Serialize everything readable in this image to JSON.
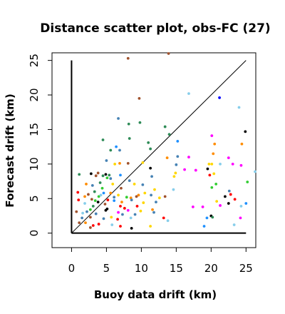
{
  "chart_data": {
    "type": "scatter",
    "title": "Distance scatter plot, obs-FC (27)",
    "xlabel": "Buoy data drift (km)",
    "ylabel": "Forecast drift (km)",
    "xlim": [
      -2.8,
      26.4
    ],
    "ylim": [
      -2.1,
      26.1
    ],
    "x_ticks": [
      0,
      5,
      10,
      15,
      20,
      25
    ],
    "y_ticks": [
      0,
      5,
      10,
      15,
      20,
      25
    ],
    "grid": false,
    "legend": "none",
    "reference": {
      "diagonal": [
        [
          0,
          0
        ],
        [
          25,
          25
        ]
      ],
      "vertical_axis_line": [
        [
          0,
          0
        ],
        [
          0,
          25
        ]
      ],
      "horizontal_axis_line": [
        [
          0,
          0
        ],
        [
          25,
          0
        ]
      ]
    },
    "points": [
      {
        "x": 8.1,
        "y": 25.3,
        "color": "#a0522d"
      },
      {
        "x": 13.9,
        "y": 26.0,
        "color": "#a0522d"
      },
      {
        "x": 16.8,
        "y": 20.2,
        "color": "#87ceeb"
      },
      {
        "x": 9.7,
        "y": 19.5,
        "color": "#a0522d"
      },
      {
        "x": 21.2,
        "y": 19.6,
        "color": "#0000ff"
      },
      {
        "x": 24.0,
        "y": 18.2,
        "color": "#87ceeb"
      },
      {
        "x": 6.7,
        "y": 16.6,
        "color": "#4682b4"
      },
      {
        "x": 9.8,
        "y": 16.0,
        "color": "#2e8b57"
      },
      {
        "x": 8.2,
        "y": 15.8,
        "color": "#2e8b57"
      },
      {
        "x": 13.4,
        "y": 15.4,
        "color": "#2e8b57"
      },
      {
        "x": 14.0,
        "y": 14.3,
        "color": "#2e8b57"
      },
      {
        "x": 20.1,
        "y": 14.1,
        "color": "#ff00ff"
      },
      {
        "x": 24.9,
        "y": 14.7,
        "color": "#000000"
      },
      {
        "x": 8.3,
        "y": 13.7,
        "color": "#2e8b57"
      },
      {
        "x": 4.5,
        "y": 13.5,
        "color": "#2e8b57"
      },
      {
        "x": 11.0,
        "y": 13.1,
        "color": "#2e8b57"
      },
      {
        "x": 15.2,
        "y": 13.3,
        "color": "#1e90ff"
      },
      {
        "x": 20.5,
        "y": 12.9,
        "color": "#ff8c00"
      },
      {
        "x": 24.4,
        "y": 12.9,
        "color": "#ff8c00"
      },
      {
        "x": 6.4,
        "y": 12.5,
        "color": "#1e90ff"
      },
      {
        "x": 5.6,
        "y": 12.0,
        "color": "#2e8b57"
      },
      {
        "x": 6.9,
        "y": 12.0,
        "color": "#4682b4"
      },
      {
        "x": 11.3,
        "y": 12.2,
        "color": "#2e8b57"
      },
      {
        "x": 20.3,
        "y": 11.5,
        "color": "#ff8c00"
      },
      {
        "x": 15.2,
        "y": 11.1,
        "color": "#4682b4"
      },
      {
        "x": 16.8,
        "y": 11.0,
        "color": "#ff00ff"
      },
      {
        "x": 22.5,
        "y": 10.9,
        "color": "#ff00ff"
      },
      {
        "x": 13.7,
        "y": 10.9,
        "color": "#ff8c00"
      },
      {
        "x": 5.0,
        "y": 10.5,
        "color": "#4682b4"
      },
      {
        "x": 6.2,
        "y": 10.0,
        "color": "#ffd700"
      },
      {
        "x": 6.9,
        "y": 10.1,
        "color": "#ff8c00"
      },
      {
        "x": 8.1,
        "y": 10.1,
        "color": "#a0522d"
      },
      {
        "x": 10.2,
        "y": 10.2,
        "color": "#ffd700"
      },
      {
        "x": 15.0,
        "y": 9.9,
        "color": "#4682b4"
      },
      {
        "x": 19.7,
        "y": 10.0,
        "color": "#ffd700"
      },
      {
        "x": 20.1,
        "y": 10.0,
        "color": "#ffd700"
      },
      {
        "x": 21.3,
        "y": 10.0,
        "color": "#87ceeb"
      },
      {
        "x": 23.1,
        "y": 10.0,
        "color": "#ff00ff"
      },
      {
        "x": 24.3,
        "y": 9.8,
        "color": "#ff00ff"
      },
      {
        "x": 11.3,
        "y": 9.4,
        "color": "#000000"
      },
      {
        "x": 16.2,
        "y": 9.2,
        "color": "#ff00ff"
      },
      {
        "x": 17.8,
        "y": 9.1,
        "color": "#ff00ff"
      },
      {
        "x": 19.5,
        "y": 9.3,
        "color": "#000000"
      },
      {
        "x": 26.3,
        "y": 8.9,
        "color": "#87ceeb"
      },
      {
        "x": 2.8,
        "y": 8.6,
        "color": "#000000"
      },
      {
        "x": 3.8,
        "y": 8.7,
        "color": "#a0522d"
      },
      {
        "x": 4.9,
        "y": 8.5,
        "color": "#000000"
      },
      {
        "x": 5.4,
        "y": 8.4,
        "color": "#2e8b57"
      },
      {
        "x": 7.0,
        "y": 8.4,
        "color": "#1e90ff"
      },
      {
        "x": 11.5,
        "y": 8.2,
        "color": "#4682b4"
      },
      {
        "x": 14.9,
        "y": 8.7,
        "color": "#ffd700"
      },
      {
        "x": 1.1,
        "y": 8.5,
        "color": "#2e8b57"
      },
      {
        "x": 3.5,
        "y": 8.3,
        "color": "#a0522d"
      },
      {
        "x": 4.5,
        "y": 8.3,
        "color": "#2e8b57"
      },
      {
        "x": 5.1,
        "y": 8.0,
        "color": "#32cd32"
      },
      {
        "x": 14.7,
        "y": 8.2,
        "color": "#ffd700"
      },
      {
        "x": 19.8,
        "y": 8.4,
        "color": "#ff0000"
      },
      {
        "x": 20.4,
        "y": 8.6,
        "color": "#ffd700"
      },
      {
        "x": 25.2,
        "y": 7.4,
        "color": "#32cd32"
      },
      {
        "x": 5.6,
        "y": 7.9,
        "color": "#4682b4"
      },
      {
        "x": 8.3,
        "y": 7.6,
        "color": "#4682b4"
      },
      {
        "x": 4.1,
        "y": 7.3,
        "color": "#2e8b57"
      },
      {
        "x": 5.9,
        "y": 7.1,
        "color": "#ffd700"
      },
      {
        "x": 2.1,
        "y": 7.1,
        "color": "#ff8c00"
      },
      {
        "x": 9.0,
        "y": 7.1,
        "color": "#ffd700"
      },
      {
        "x": 10.2,
        "y": 7.0,
        "color": "#4682b4"
      },
      {
        "x": 20.7,
        "y": 7.1,
        "color": "#32cd32"
      },
      {
        "x": 3.0,
        "y": 6.9,
        "color": "#4682b4"
      },
      {
        "x": 4.4,
        "y": 6.5,
        "color": "#32cd32"
      },
      {
        "x": 7.1,
        "y": 6.5,
        "color": "#a0522d"
      },
      {
        "x": 11.9,
        "y": 6.3,
        "color": "#ffd700"
      },
      {
        "x": 14.6,
        "y": 6.3,
        "color": "#87ceeb"
      },
      {
        "x": 20.1,
        "y": 6.6,
        "color": "#32cd32"
      },
      {
        "x": 22.6,
        "y": 6.1,
        "color": "#4682b4"
      },
      {
        "x": 22.8,
        "y": 5.6,
        "color": "#ff0000"
      },
      {
        "x": 0.9,
        "y": 5.9,
        "color": "#ff0000"
      },
      {
        "x": 3.3,
        "y": 6.0,
        "color": "#2e8b57"
      },
      {
        "x": 4.6,
        "y": 5.8,
        "color": "#1e90ff"
      },
      {
        "x": 5.6,
        "y": 5.8,
        "color": "#ff8c00"
      },
      {
        "x": 9.6,
        "y": 5.5,
        "color": "#ff8c00"
      },
      {
        "x": 10.5,
        "y": 5.8,
        "color": "#ffd700"
      },
      {
        "x": 11.4,
        "y": 5.5,
        "color": "#4682b4"
      },
      {
        "x": 13.4,
        "y": 5.3,
        "color": "#a0522d"
      },
      {
        "x": 1.9,
        "y": 5.3,
        "color": "#ff8c00"
      },
      {
        "x": 2.4,
        "y": 5.6,
        "color": "#a0522d"
      },
      {
        "x": 3.9,
        "y": 5.3,
        "color": "#32cd32"
      },
      {
        "x": 4.2,
        "y": 5.5,
        "color": "#87ceeb"
      },
      {
        "x": 6.1,
        "y": 5.2,
        "color": "#4682b4"
      },
      {
        "x": 6.7,
        "y": 5.5,
        "color": "#ffd700"
      },
      {
        "x": 7.9,
        "y": 5.2,
        "color": "#32cd32"
      },
      {
        "x": 8.5,
        "y": 5.1,
        "color": "#ff8c00"
      },
      {
        "x": 9.3,
        "y": 5.3,
        "color": "#a0522d"
      },
      {
        "x": 12.6,
        "y": 5.1,
        "color": "#ffd700"
      },
      {
        "x": 22.0,
        "y": 5.3,
        "color": "#000000"
      },
      {
        "x": 23.4,
        "y": 4.9,
        "color": "#ff0000"
      },
      {
        "x": 1.0,
        "y": 4.8,
        "color": "#ff0000"
      },
      {
        "x": 2.9,
        "y": 4.9,
        "color": "#a0522d"
      },
      {
        "x": 3.4,
        "y": 4.7,
        "color": "#32cd32"
      },
      {
        "x": 3.8,
        "y": 4.5,
        "color": "#000000"
      },
      {
        "x": 5.2,
        "y": 4.8,
        "color": "#ff0000"
      },
      {
        "x": 6.1,
        "y": 4.7,
        "color": "#1e90ff"
      },
      {
        "x": 7.2,
        "y": 4.5,
        "color": "#ff8c00"
      },
      {
        "x": 8.6,
        "y": 4.8,
        "color": "#4682b4"
      },
      {
        "x": 10.3,
        "y": 4.4,
        "color": "#ffd700"
      },
      {
        "x": 12.1,
        "y": 4.5,
        "color": "#4682b4"
      },
      {
        "x": 1.9,
        "y": 4.3,
        "color": "#87ceeb"
      },
      {
        "x": 4.8,
        "y": 4.2,
        "color": "#a0522d"
      },
      {
        "x": 20.8,
        "y": 4.6,
        "color": "#ffd700"
      },
      {
        "x": 21.3,
        "y": 4.0,
        "color": "#ff00ff"
      },
      {
        "x": 22.5,
        "y": 4.3,
        "color": "#000000"
      },
      {
        "x": 25.0,
        "y": 4.3,
        "color": "#1e90ff"
      },
      {
        "x": 3.1,
        "y": 3.9,
        "color": "#2e8b57"
      },
      {
        "x": 7.0,
        "y": 3.9,
        "color": "#ff0000"
      },
      {
        "x": 9.4,
        "y": 3.9,
        "color": "#ff0000"
      },
      {
        "x": 17.4,
        "y": 3.8,
        "color": "#ff00ff"
      },
      {
        "x": 18.8,
        "y": 3.8,
        "color": "#ff00ff"
      },
      {
        "x": 24.3,
        "y": 3.9,
        "color": "#87ceeb"
      },
      {
        "x": 2.7,
        "y": 3.4,
        "color": "#32cd32"
      },
      {
        "x": 5.1,
        "y": 3.5,
        "color": "#000000"
      },
      {
        "x": 7.6,
        "y": 3.6,
        "color": "#ff0000"
      },
      {
        "x": 8.1,
        "y": 3.3,
        "color": "#ff00ff"
      },
      {
        "x": 9.9,
        "y": 3.2,
        "color": "#ffd700"
      },
      {
        "x": 11.6,
        "y": 3.4,
        "color": "#ff8c00"
      },
      {
        "x": 0.7,
        "y": 3.1,
        "color": "#a0522d"
      },
      {
        "x": 1.6,
        "y": 2.9,
        "color": "#87ceeb"
      },
      {
        "x": 2.2,
        "y": 3.1,
        "color": "#4682b4"
      },
      {
        "x": 3.5,
        "y": 2.8,
        "color": "#4682b4"
      },
      {
        "x": 4.9,
        "y": 3.3,
        "color": "#000000"
      },
      {
        "x": 6.7,
        "y": 3.0,
        "color": "#ff00ff"
      },
      {
        "x": 7.3,
        "y": 2.7,
        "color": "#4682b4"
      },
      {
        "x": 9.1,
        "y": 2.7,
        "color": "#4682b4"
      },
      {
        "x": 11.8,
        "y": 3.0,
        "color": "#4682b4"
      },
      {
        "x": 20.0,
        "y": 2.5,
        "color": "#000000"
      },
      {
        "x": 20.2,
        "y": 2.3,
        "color": "#2e8b57"
      },
      {
        "x": 1.5,
        "y": 2.2,
        "color": "#4682b4"
      },
      {
        "x": 2.7,
        "y": 2.3,
        "color": "#a0522d"
      },
      {
        "x": 4.6,
        "y": 2.1,
        "color": "#4682b4"
      },
      {
        "x": 5.7,
        "y": 2.3,
        "color": "#ffd700"
      },
      {
        "x": 6.6,
        "y": 2.0,
        "color": "#ff0000"
      },
      {
        "x": 8.5,
        "y": 2.2,
        "color": "#87ceeb"
      },
      {
        "x": 13.2,
        "y": 2.2,
        "color": "#ff0000"
      },
      {
        "x": 13.8,
        "y": 1.8,
        "color": "#87ceeb"
      },
      {
        "x": 19.4,
        "y": 2.2,
        "color": "#1e90ff"
      },
      {
        "x": 24.2,
        "y": 2.2,
        "color": "#ff00ff"
      },
      {
        "x": 1.1,
        "y": 1.5,
        "color": "#a0522d"
      },
      {
        "x": 2.0,
        "y": 1.5,
        "color": "#ff8c00"
      },
      {
        "x": 3.1,
        "y": 1.1,
        "color": "#ff0000"
      },
      {
        "x": 3.9,
        "y": 1.3,
        "color": "#ff0000"
      },
      {
        "x": 5.8,
        "y": 1.2,
        "color": "#87ceeb"
      },
      {
        "x": 7.0,
        "y": 1.0,
        "color": "#ff0000"
      },
      {
        "x": 11.3,
        "y": 1.0,
        "color": "#ffd700"
      },
      {
        "x": 8.6,
        "y": 0.7,
        "color": "#000000"
      },
      {
        "x": 2.7,
        "y": 0.8,
        "color": "#a0522d"
      },
      {
        "x": 19.0,
        "y": 1.0,
        "color": "#1e90ff"
      },
      {
        "x": 23.3,
        "y": 1.2,
        "color": "#87ceeb"
      }
    ]
  }
}
